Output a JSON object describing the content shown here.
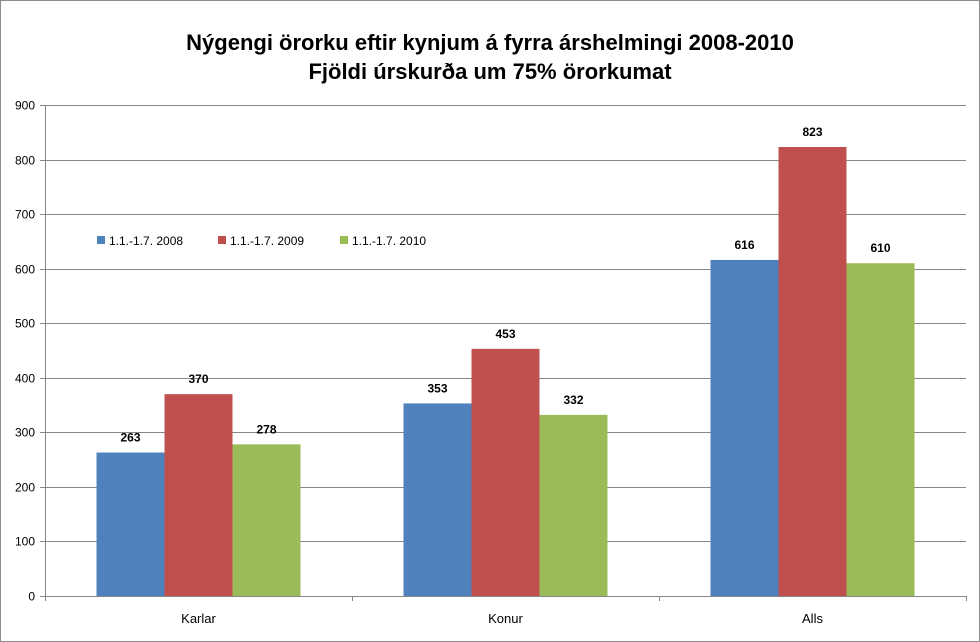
{
  "chart_data": {
    "type": "bar",
    "title": "Nýgengi örorku eftir kynjum á fyrra árshelmingi 2008-2010",
    "subtitle": "Fjöldi úrskurða um 75% örorkumat",
    "xlabel": "",
    "ylabel": "",
    "ylim": [
      0,
      900
    ],
    "yticks": [
      0,
      100,
      200,
      300,
      400,
      500,
      600,
      700,
      800,
      900
    ],
    "grid": true,
    "legend_position": "top-left",
    "categories": [
      "Karlar",
      "Konur",
      "Alls"
    ],
    "series": [
      {
        "name": "1.1.-1.7. 2008",
        "color": "#4f81bd",
        "values": [
          263,
          353,
          616
        ]
      },
      {
        "name": "1.1.-1.7. 2009",
        "color": "#c0504d",
        "values": [
          370,
          453,
          823
        ]
      },
      {
        "name": "1.1.-1.7. 2010",
        "color": "#9bbb59",
        "values": [
          278,
          332,
          610
        ]
      }
    ]
  }
}
